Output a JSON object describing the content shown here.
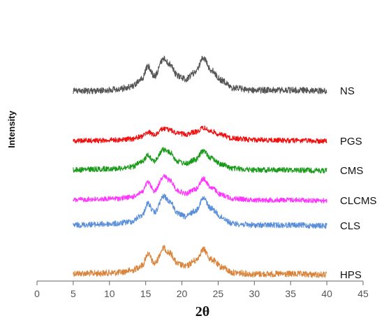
{
  "chart_data": {
    "type": "line",
    "xlabel": "2θ",
    "ylabel": "Intensity",
    "xlim": [
      0,
      45
    ],
    "x_ticks": [
      0,
      5,
      10,
      15,
      20,
      25,
      30,
      35,
      40,
      45
    ],
    "grid": false,
    "legend": "labels at right end of each curve",
    "series": [
      {
        "name": "HPS",
        "color": "#d9843b",
        "x": [
          5,
          8,
          11,
          13,
          14.5,
          15.3,
          16.2,
          17.5,
          18.3,
          19.5,
          20.5,
          21.8,
          23.0,
          24.0,
          25.5,
          27.0,
          30,
          35,
          40
        ],
        "y": [
          391,
          391,
          390,
          387,
          380,
          363,
          377,
          355,
          362,
          378,
          381,
          373,
          357,
          371,
          382,
          390,
          392,
          392,
          393
        ]
      },
      {
        "name": "CLS",
        "color": "#5b8fd9",
        "x": [
          5,
          8,
          11,
          13,
          14.5,
          15.3,
          16.2,
          17.5,
          18.3,
          19.5,
          20.5,
          21.8,
          23.0,
          24.0,
          25.5,
          27.0,
          30,
          35,
          40
        ],
        "y": [
          322,
          321,
          320,
          317,
          308,
          291,
          304,
          281,
          288,
          306,
          310,
          302,
          284,
          298,
          311,
          320,
          322,
          322,
          323
        ]
      },
      {
        "name": "CLCMS",
        "color": "#ff33ff",
        "x": [
          5,
          8,
          11,
          13,
          14.5,
          15.3,
          16.2,
          17.5,
          18.3,
          19.5,
          20.5,
          21.8,
          23.0,
          24.0,
          25.5,
          27.0,
          30,
          35,
          40
        ],
        "y": [
          286,
          285,
          284,
          282,
          275,
          261,
          273,
          252,
          258,
          273,
          277,
          271,
          256,
          268,
          279,
          284,
          286,
          286,
          287
        ]
      },
      {
        "name": "CMS",
        "color": "#1a9a1a",
        "x": [
          5,
          8,
          11,
          13,
          14.5,
          15.3,
          16.2,
          17.5,
          18.3,
          19.5,
          20.5,
          21.8,
          23.0,
          24.0,
          25.5,
          27.0,
          30,
          35,
          40
        ],
        "y": [
          243,
          242,
          241,
          239,
          232,
          222,
          230,
          214,
          218,
          231,
          234,
          229,
          216,
          226,
          235,
          241,
          243,
          243,
          244
        ]
      },
      {
        "name": "PGS",
        "color": "#ee1111",
        "x": [
          5,
          8,
          11,
          13,
          14.5,
          15.3,
          16.2,
          17.5,
          18.3,
          19.5,
          20.5,
          21.8,
          23.0,
          24.0,
          25.5,
          27.0,
          30,
          35,
          40
        ],
        "y": [
          201,
          201,
          200,
          199,
          195,
          189,
          193,
          184,
          186,
          191,
          192,
          189,
          183,
          188,
          193,
          198,
          200,
          201,
          202
        ]
      },
      {
        "name": "NS",
        "color": "#555555",
        "x": [
          5,
          8,
          11,
          13,
          14.5,
          15.3,
          16.2,
          17.5,
          18.3,
          19.5,
          20.5,
          21.8,
          23.0,
          24.0,
          25.5,
          27.0,
          30,
          35,
          40
        ],
        "y": [
          130,
          130,
          128,
          124,
          113,
          95,
          109,
          84,
          92,
          109,
          113,
          104,
          83,
          100,
          115,
          126,
          129,
          129,
          130
        ]
      }
    ]
  }
}
